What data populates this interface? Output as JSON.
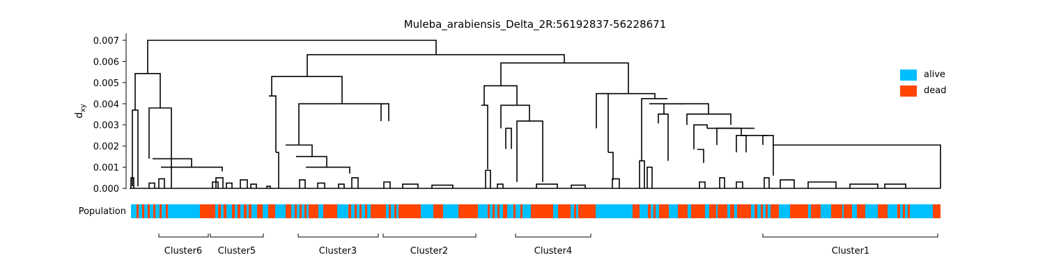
{
  "chart_data": {
    "type": "dendrogram",
    "title": "Muleba_arabiensis_Delta_2R:56192837-56228671",
    "ylabel": "d",
    "ylabel_sub": "xy",
    "ylim": [
      0,
      0.0073
    ],
    "yticks": [
      "0.000",
      "0.001",
      "0.002",
      "0.003",
      "0.004",
      "0.005",
      "0.006",
      "0.007"
    ],
    "ytick_values": [
      0,
      0.001,
      0.002,
      0.003,
      0.004,
      0.005,
      0.006,
      0.007
    ],
    "legend": {
      "placement": "right",
      "items": [
        {
          "label": "alive",
          "color": "#00bfff"
        },
        {
          "label": "dead",
          "color": "#ff4500"
        }
      ]
    },
    "population_label": "Population",
    "clusters": [
      "Cluster6",
      "Cluster5",
      "Cluster3",
      "Cluster2",
      "Cluster4",
      "Cluster1"
    ],
    "merge_heights": [
      0.007,
      0.00632,
      0.00593,
      0.00543,
      0.00529,
      0.00485,
      0.00448,
      0.00437,
      0.00424,
      0.004,
      0.00393,
      0.0038,
      0.00351,
      0.00318,
      0.00307,
      0.00284,
      0.0025,
      0.00205,
      0.0017,
      0.0013,
      0.001
    ]
  }
}
